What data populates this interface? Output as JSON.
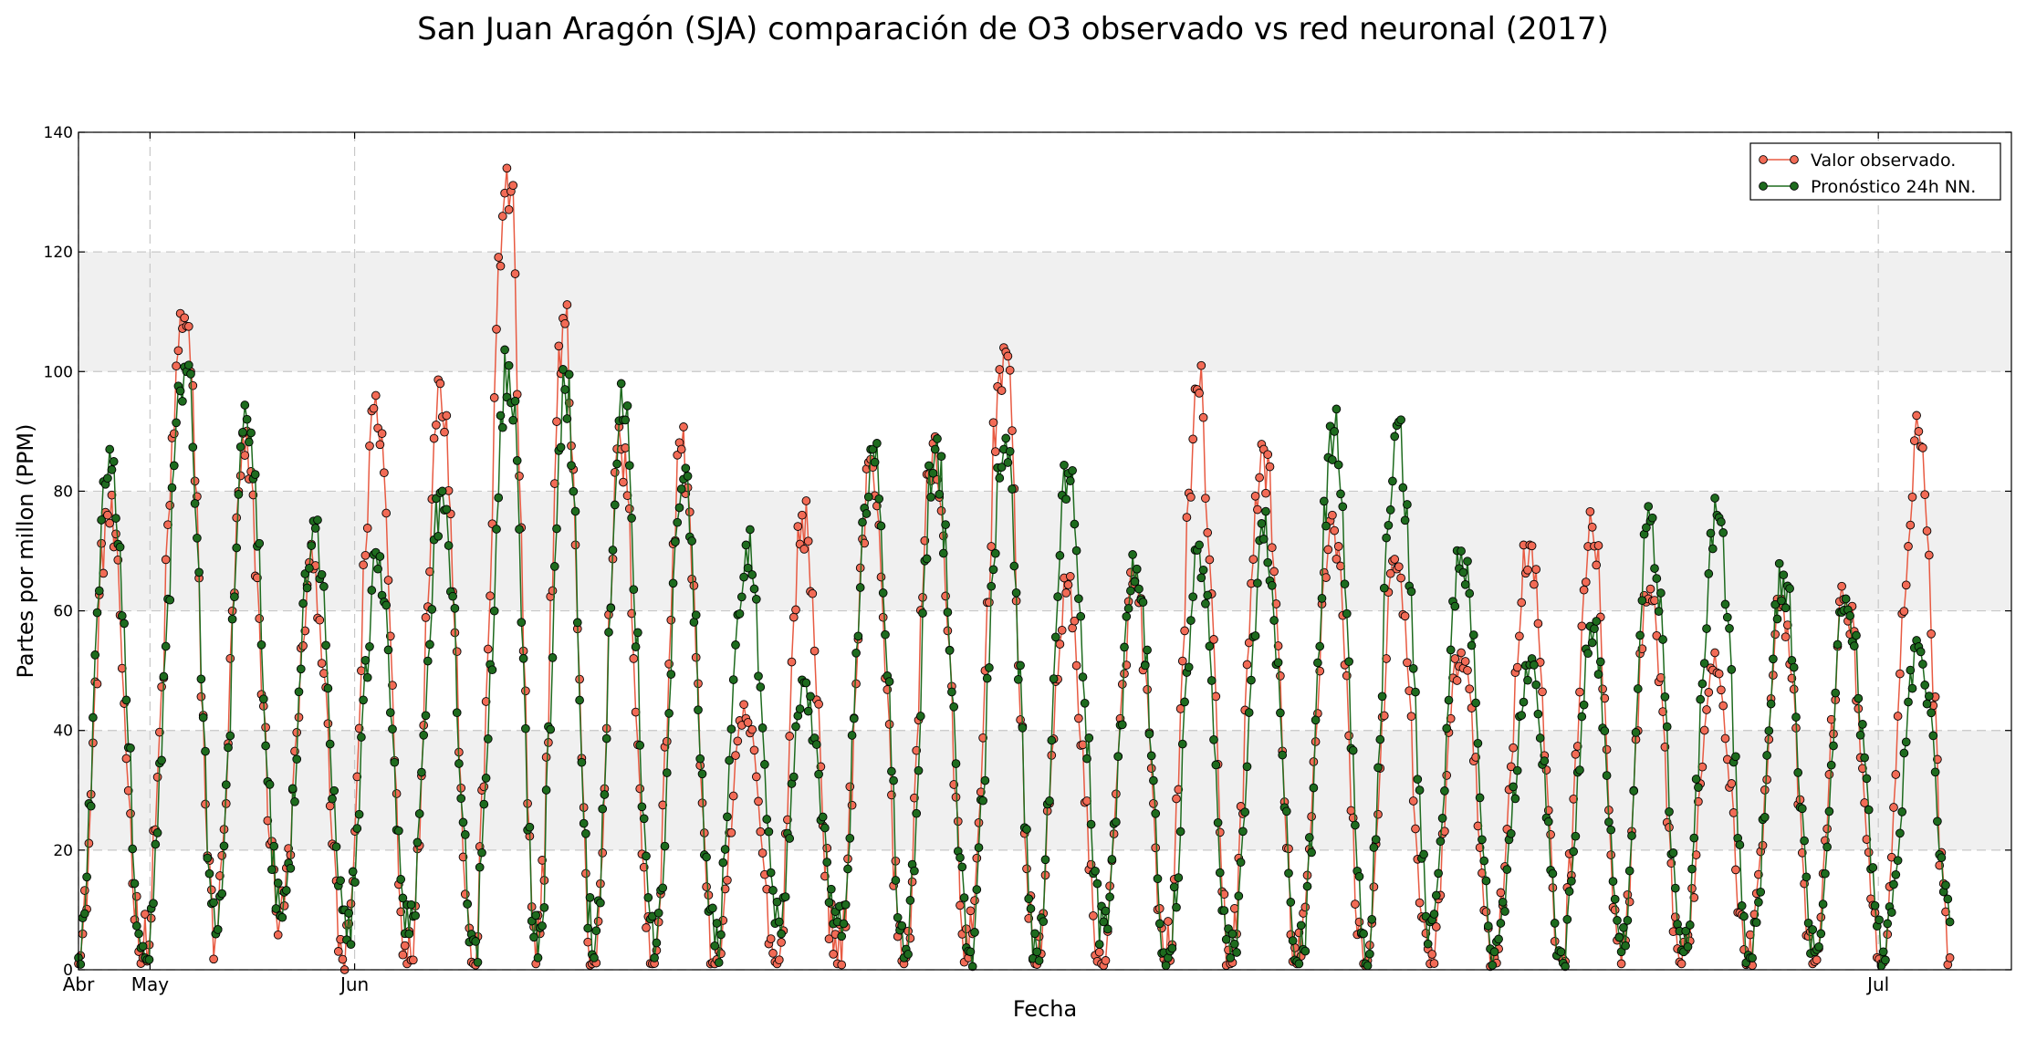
{
  "chart_data": {
    "type": "line",
    "title": "San Juan Aragón (SJA) comparación de O3 observado vs red neuronal (2017)",
    "xlabel": "Fecha",
    "ylabel": "Partes por millon (PPM)",
    "ylim": [
      0,
      140
    ],
    "yticks": [
      0,
      20,
      40,
      60,
      80,
      100,
      120,
      140
    ],
    "xlim_days": [
      0,
      116.2
    ],
    "xticks": [
      {
        "label": "Abr",
        "day": 0
      },
      {
        "label": "May",
        "day": 4.3
      },
      {
        "label": "Jun",
        "day": 16.6
      },
      {
        "label": "Jul",
        "day": 108.2
      }
    ],
    "grid": true,
    "background_bands": [
      [
        20,
        40
      ],
      [
        60,
        80
      ],
      [
        100,
        120
      ]
    ],
    "legend_position": "top-right",
    "legend": [
      "Valor observado.",
      "Pronóstico 24h NN."
    ],
    "peak_days": [
      1.8,
      6.4,
      10.0,
      14.1,
      17.9,
      21.8,
      25.8,
      29.2,
      32.6,
      36.3,
      40.1,
      43.5,
      47.7,
      51.4,
      55.6,
      59.4,
      63.5,
      67.3,
      71.2,
      75.4,
      79.2,
      83.1,
      87.2,
      91.0,
      94.4,
      98.4,
      102.4,
      106.2,
      110.6
    ],
    "trough_days": [
      0.0,
      3.9,
      8.2,
      12.1,
      16.0,
      19.8,
      23.7,
      27.5,
      30.9,
      34.5,
      38.2,
      42.0,
      45.6,
      49.6,
      53.5,
      57.5,
      61.5,
      65.4,
      69.2,
      73.3,
      77.3,
      81.2,
      85.1,
      89.1,
      92.7,
      96.4,
      100.4,
      104.3,
      108.4,
      112.5
    ],
    "series": [
      {
        "name": "Valor observado.",
        "color": "#f26b56",
        "peaks": [
          76,
          109,
          86,
          67,
          96,
          98,
          134,
          108,
          87,
          87,
          42,
          76,
          84,
          88,
          104,
          63,
          65,
          97,
          87,
          76,
          67,
          53,
          71,
          74,
          62,
          53,
          62,
          62,
          90
        ],
        "troughs": [
          1,
          2,
          6,
          9,
          0,
          1,
          1,
          1,
          1,
          1,
          1,
          1,
          1,
          1,
          2,
          1,
          1,
          1,
          1,
          1,
          1,
          1,
          2,
          2,
          1,
          1,
          1,
          1,
          1,
          2
        ]
      },
      {
        "name": "Pronóstico 24h NN.",
        "color": "#1e6b1e",
        "peaks": [
          87,
          100,
          92,
          75,
          67,
          80,
          101,
          97,
          98,
          82,
          71,
          48,
          87,
          87,
          87,
          83,
          67,
          71,
          72,
          90,
          91,
          70,
          51,
          57,
          75,
          76,
          66,
          62,
          54
        ],
        "troughs": [
          2,
          2,
          6,
          9,
          5,
          6,
          5,
          2,
          2,
          2,
          4,
          8,
          8,
          2,
          3,
          3,
          8,
          2,
          2,
          1,
          1,
          8,
          3,
          3,
          3,
          3,
          2,
          3,
          3,
          8
        ]
      }
    ]
  }
}
